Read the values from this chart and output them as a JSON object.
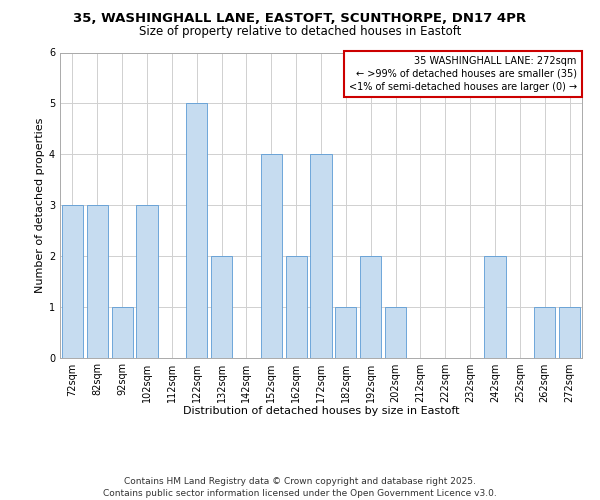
{
  "title": "35, WASHINGHALL LANE, EASTOFT, SCUNTHORPE, DN17 4PR",
  "subtitle": "Size of property relative to detached houses in Eastoft",
  "xlabel": "Distribution of detached houses by size in Eastoft",
  "ylabel": "Number of detached properties",
  "bin_labels": [
    "72sqm",
    "82sqm",
    "92sqm",
    "102sqm",
    "112sqm",
    "122sqm",
    "132sqm",
    "142sqm",
    "152sqm",
    "162sqm",
    "172sqm",
    "182sqm",
    "192sqm",
    "202sqm",
    "212sqm",
    "222sqm",
    "232sqm",
    "242sqm",
    "252sqm",
    "262sqm",
    "272sqm"
  ],
  "bar_heights": [
    3,
    3,
    1,
    3,
    0,
    5,
    2,
    0,
    4,
    2,
    4,
    1,
    2,
    1,
    0,
    0,
    0,
    2,
    0,
    1,
    1
  ],
  "bar_color": "#c6dcf0",
  "bar_edgecolor": "#5b9bd5",
  "ylim": [
    0,
    6
  ],
  "yticks": [
    0,
    1,
    2,
    3,
    4,
    5,
    6
  ],
  "background_color": "#ffffff",
  "grid_color": "#d0d0d0",
  "legend_title": "35 WASHINGHALL LANE: 272sqm",
  "legend_line1": "← >99% of detached houses are smaller (35)",
  "legend_line2": "<1% of semi-detached houses are larger (0) →",
  "legend_box_color": "#cc0000",
  "footer_line1": "Contains HM Land Registry data © Crown copyright and database right 2025.",
  "footer_line2": "Contains public sector information licensed under the Open Government Licence v3.0.",
  "title_fontsize": 9.5,
  "subtitle_fontsize": 8.5,
  "axis_label_fontsize": 8,
  "tick_fontsize": 7,
  "legend_fontsize": 7,
  "footer_fontsize": 6.5
}
